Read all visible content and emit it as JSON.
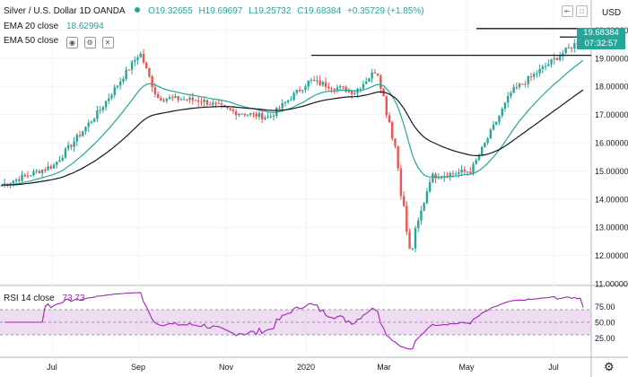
{
  "header": {
    "symbol": "Silver / U.S. Dollar  1D  OANDA",
    "open": "O19.32655",
    "high": "H19.69697",
    "low": "L19.25732",
    "close": "C19.68384",
    "change": "+0.35729 (+1.85%)"
  },
  "indicators": {
    "ema20": {
      "label": "EMA 20 close",
      "value": "18.62994",
      "color": "#26a69a"
    },
    "ema50": {
      "label": "EMA 50 close",
      "value": "",
      "color": "#131722"
    },
    "rsi": {
      "label": "RSI 14 close",
      "value": "73.73",
      "color": "#9c27b0"
    }
  },
  "currency": "USD",
  "price_badge": {
    "price": "19.68384",
    "countdown": "07:32:57"
  },
  "colors": {
    "up": "#26a69a",
    "down": "#ef5350",
    "ema20": "#26a69a",
    "ema50": "#131722",
    "rsi": "#9c27b0",
    "rsi_band": "#e1bee7"
  },
  "icons": [
    "eye-icon",
    "settings-icon",
    "close-icon",
    "gear-icon"
  ],
  "chart_data": {
    "type": "candlestick",
    "title": "Silver / U.S. Dollar  1D  OANDA",
    "price_axis": {
      "ticks": [
        "20.00000",
        "19.00000",
        "18.00000",
        "17.00000",
        "16.00000",
        "15.00000",
        "14.00000",
        "13.00000",
        "12.00000",
        "11.00000"
      ],
      "ylim": [
        11.0,
        20.3
      ]
    },
    "time_axis": {
      "ticks": [
        "Jul",
        "Sep",
        "Nov",
        "2020",
        "Mar",
        "May",
        "Jul"
      ]
    },
    "anchors": [
      {
        "month": "Jun 2019",
        "close": 14.5
      },
      {
        "month": "Jul 2019",
        "close": 15.2
      },
      {
        "month": "Aug 2019",
        "close": 17.1
      },
      {
        "month": "Sep 2019",
        "close": 19.2
      },
      {
        "month": "Sep 2019 (late)",
        "close": 17.6
      },
      {
        "month": "Oct 2019",
        "close": 17.5
      },
      {
        "month": "Nov 2019",
        "close": 17.1
      },
      {
        "month": "Dec 2019",
        "close": 16.9
      },
      {
        "month": "Jan 2020",
        "close": 18.2
      },
      {
        "month": "Feb 2020",
        "close": 17.8
      },
      {
        "month": "Feb 2020 (late)",
        "close": 18.6
      },
      {
        "month": "Mar 2020",
        "close": 16.0
      },
      {
        "month": "Mar 2020 (low)",
        "close": 12.0
      },
      {
        "month": "Apr 2020",
        "close": 14.8
      },
      {
        "month": "May 2020",
        "close": 15.0
      },
      {
        "month": "Jun 2020",
        "close": 17.8
      },
      {
        "month": "Jul 2020",
        "close": 19.68
      }
    ],
    "lines": [
      {
        "name": "EMA 20 close",
        "last": 18.63
      },
      {
        "name": "EMA 50 close",
        "last": 17.8
      }
    ],
    "horizontal_levels": [
      19.1,
      19.75,
      20.05
    ],
    "rsi": {
      "name": "RSI 14 close",
      "last": 73.73,
      "ticks": [
        "75.00",
        "50.00",
        "25.00"
      ],
      "ylim": [
        0,
        100
      ],
      "bands": [
        30,
        70
      ]
    }
  }
}
